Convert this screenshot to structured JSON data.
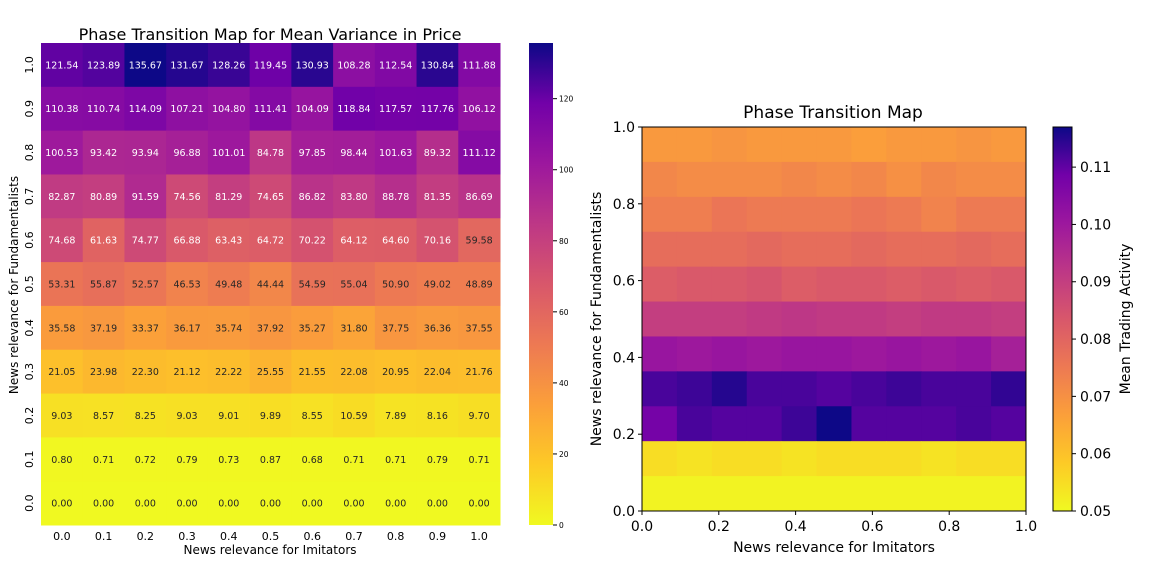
{
  "chart_data": [
    {
      "type": "heatmap",
      "title": "Phase Transition Map for Mean Variance in Price",
      "xlabel": "News relevance for Imitators",
      "ylabel": "News relevance for Fundamentalists",
      "x_ticks": [
        "0.0",
        "0.1",
        "0.2",
        "0.3",
        "0.4",
        "0.5",
        "0.6",
        "0.7",
        "0.8",
        "0.9",
        "1.0"
      ],
      "y_ticks": [
        "1.0",
        "0.9",
        "0.8",
        "0.7",
        "0.6",
        "0.5",
        "0.4",
        "0.3",
        "0.2",
        "0.1",
        "0.0"
      ],
      "values": [
        [
          121.54,
          123.89,
          135.67,
          131.67,
          128.26,
          119.45,
          130.93,
          108.28,
          112.54,
          130.84,
          111.88
        ],
        [
          110.38,
          110.74,
          114.09,
          107.21,
          104.8,
          111.41,
          104.09,
          118.84,
          117.57,
          117.76,
          106.12
        ],
        [
          100.53,
          93.42,
          93.94,
          96.88,
          101.01,
          84.78,
          97.85,
          98.44,
          101.63,
          89.32,
          111.12
        ],
        [
          82.87,
          80.89,
          91.59,
          74.56,
          81.29,
          74.65,
          86.82,
          83.8,
          88.78,
          81.35,
          86.69
        ],
        [
          74.68,
          61.63,
          74.77,
          66.88,
          63.43,
          64.72,
          70.22,
          64.12,
          64.6,
          70.16,
          59.58
        ],
        [
          53.31,
          55.87,
          52.57,
          46.53,
          49.48,
          44.44,
          54.59,
          55.04,
          50.9,
          49.02,
          48.89
        ],
        [
          35.58,
          37.19,
          33.37,
          36.17,
          35.74,
          37.92,
          35.27,
          31.8,
          37.75,
          36.36,
          37.55
        ],
        [
          21.05,
          23.98,
          22.3,
          21.12,
          22.22,
          25.55,
          21.55,
          22.08,
          20.95,
          22.04,
          21.76
        ],
        [
          9.03,
          8.57,
          8.25,
          9.03,
          9.01,
          9.89,
          8.55,
          10.59,
          7.89,
          8.16,
          9.7
        ],
        [
          0.8,
          0.71,
          0.72,
          0.79,
          0.73,
          0.87,
          0.68,
          0.71,
          0.71,
          0.79,
          0.71
        ],
        [
          0.0,
          0.0,
          0.0,
          0.0,
          0.0,
          0.0,
          0.0,
          0.0,
          0.0,
          0.0,
          0.0
        ]
      ],
      "colorbar": {
        "min": 0,
        "max": 135.67,
        "ticks": [
          "0",
          "20",
          "40",
          "60",
          "80",
          "100",
          "120"
        ]
      },
      "colormap": "plasma_r"
    },
    {
      "type": "heatmap",
      "title": "Phase Transition Map",
      "xlabel": "News relevance for Imitators",
      "ylabel": "News relevance for Fundamentalists",
      "x_ticks": [
        "0.0",
        "0.2",
        "0.4",
        "0.6",
        "0.8",
        "1.0"
      ],
      "y_ticks": [
        "0.0",
        "0.2",
        "0.4",
        "0.6",
        "0.8",
        "1.0"
      ],
      "xlim": [
        0,
        1
      ],
      "ylim": [
        0,
        1
      ],
      "values": [
        [
          0.068,
          0.068,
          0.069,
          0.068,
          0.068,
          0.068,
          0.067,
          0.068,
          0.068,
          0.069,
          0.068
        ],
        [
          0.072,
          0.071,
          0.071,
          0.071,
          0.072,
          0.071,
          0.072,
          0.07,
          0.072,
          0.071,
          0.071
        ],
        [
          0.074,
          0.074,
          0.076,
          0.075,
          0.075,
          0.075,
          0.076,
          0.075,
          0.073,
          0.075,
          0.075
        ],
        [
          0.078,
          0.078,
          0.078,
          0.079,
          0.078,
          0.078,
          0.079,
          0.078,
          0.078,
          0.079,
          0.078
        ],
        [
          0.082,
          0.083,
          0.083,
          0.084,
          0.082,
          0.083,
          0.083,
          0.082,
          0.083,
          0.082,
          0.083
        ],
        [
          0.09,
          0.09,
          0.09,
          0.091,
          0.092,
          0.091,
          0.091,
          0.09,
          0.091,
          0.091,
          0.09
        ],
        [
          0.101,
          0.1,
          0.101,
          0.1,
          0.101,
          0.101,
          0.1,
          0.101,
          0.1,
          0.101,
          0.098
        ],
        [
          0.112,
          0.113,
          0.115,
          0.112,
          0.112,
          0.111,
          0.112,
          0.113,
          0.112,
          0.112,
          0.114
        ],
        [
          0.108,
          0.112,
          0.111,
          0.111,
          0.113,
          0.117,
          0.111,
          0.111,
          0.111,
          0.112,
          0.111
        ],
        [
          0.055,
          0.054,
          0.055,
          0.055,
          0.054,
          0.055,
          0.055,
          0.055,
          0.054,
          0.055,
          0.055
        ],
        [
          0.051,
          0.051,
          0.051,
          0.051,
          0.051,
          0.051,
          0.051,
          0.051,
          0.051,
          0.051,
          0.051
        ]
      ],
      "colorbar": {
        "label": "Mean Trading Activity",
        "min": 0.05,
        "max": 0.117,
        "ticks": [
          "0.05",
          "0.06",
          "0.07",
          "0.08",
          "0.09",
          "0.10",
          "0.11"
        ]
      },
      "colormap": "plasma_r"
    }
  ]
}
